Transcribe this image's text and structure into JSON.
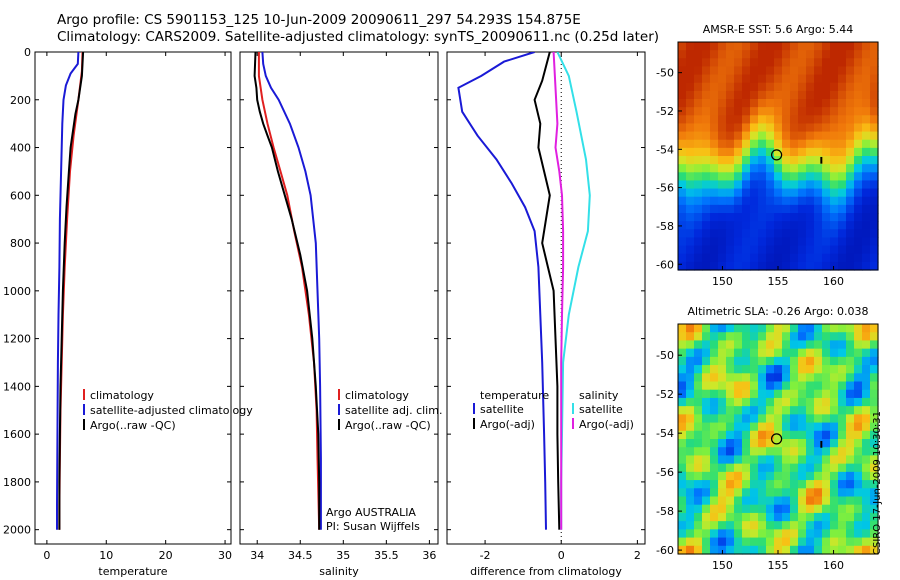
{
  "title": {
    "line1": "Argo profile: CS 5901153_125 10-Jun-2009 20090611_297 54.293S 154.875E",
    "line2": "Climatology: CARS2009. Satellite-adjusted climatology: synTS_20090611.nc (0.25d later)"
  },
  "stamp": "CSIRO 17-Jun-2009 10:30:31",
  "colors": {
    "climatology": "#e02020",
    "satellite": "#1a1ad6",
    "argo": "#000000",
    "sat_salinity": "#33e0e8",
    "argo_adj_salinity": "#e020e0",
    "marker": "#000000"
  },
  "chart_data": [
    {
      "type": "line",
      "name": "temperature",
      "xlabel": "temperature",
      "ylabel": "",
      "xlim": [
        -2,
        31
      ],
      "ylim": [
        2060,
        0
      ],
      "xticks": [
        "0",
        "10",
        "20",
        "30"
      ],
      "xtick_values": [
        0,
        10,
        20,
        30
      ],
      "yticks": [
        "0",
        "200",
        "400",
        "600",
        "800",
        "1000",
        "1200",
        "1400",
        "1600",
        "1800",
        "2000"
      ],
      "ytick_values": [
        0,
        200,
        400,
        600,
        800,
        1000,
        1200,
        1400,
        1600,
        1800,
        2000
      ],
      "legend": [
        "climatology",
        "satellite-adjusted climatology",
        "Argo(..raw -QC)"
      ],
      "series": [
        {
          "name": "climatology",
          "color_key": "climatology",
          "points": [
            [
              6.0,
              0
            ],
            [
              5.9,
              80
            ],
            [
              5.3,
              200
            ],
            [
              4.5,
              350
            ],
            [
              3.9,
              500
            ],
            [
              3.4,
              700
            ],
            [
              3.0,
              900
            ],
            [
              2.7,
              1100
            ],
            [
              2.5,
              1300
            ],
            [
              2.3,
              1500
            ],
            [
              2.2,
              1700
            ],
            [
              2.1,
              1900
            ],
            [
              2.1,
              2000
            ]
          ]
        },
        {
          "name": "satellite-adjusted climatology",
          "color_key": "satellite",
          "points": [
            [
              5.3,
              0
            ],
            [
              5.2,
              50
            ],
            [
              4.0,
              90
            ],
            [
              3.2,
              140
            ],
            [
              2.8,
              200
            ],
            [
              2.6,
              300
            ],
            [
              2.4,
              500
            ],
            [
              2.2,
              700
            ],
            [
              2.1,
              900
            ],
            [
              1.95,
              1100
            ],
            [
              1.85,
              1300
            ],
            [
              1.8,
              1500
            ],
            [
              1.75,
              1700
            ],
            [
              1.7,
              1900
            ],
            [
              1.7,
              2000
            ]
          ]
        },
        {
          "name": "Argo(..raw -QC)",
          "color_key": "argo",
          "points": [
            [
              6.1,
              0
            ],
            [
              5.9,
              100
            ],
            [
              5.3,
              200
            ],
            [
              4.8,
              260
            ],
            [
              4.4,
              330
            ],
            [
              4.0,
              400
            ],
            [
              3.7,
              500
            ],
            [
              3.3,
              650
            ],
            [
              3.0,
              800
            ],
            [
              2.7,
              1000
            ],
            [
              2.5,
              1200
            ],
            [
              2.3,
              1400
            ],
            [
              2.2,
              1600
            ],
            [
              2.1,
              1800
            ],
            [
              2.1,
              2000
            ]
          ]
        }
      ]
    },
    {
      "type": "line",
      "name": "salinity",
      "xlabel": "salinity",
      "ylabel": "",
      "xlim": [
        33.8,
        36.1
      ],
      "ylim": [
        2060,
        0
      ],
      "xticks": [
        "34",
        "34.5",
        "35",
        "35.5",
        "36"
      ],
      "xtick_values": [
        34,
        34.5,
        35,
        35.5,
        36
      ],
      "legend": [
        "climatology",
        "satellite adj. clim.",
        "Argo(..raw -QC)"
      ],
      "annotations": [
        "Argo AUSTRALIA",
        "PI: Susan Wijffels"
      ],
      "series": [
        {
          "name": "climatology",
          "color_key": "climatology",
          "points": [
            [
              34.02,
              0
            ],
            [
              34.02,
              100
            ],
            [
              34.06,
              200
            ],
            [
              34.12,
              300
            ],
            [
              34.19,
              400
            ],
            [
              34.27,
              500
            ],
            [
              34.35,
              600
            ],
            [
              34.43,
              750
            ],
            [
              34.52,
              900
            ],
            [
              34.6,
              1100
            ],
            [
              34.66,
              1300
            ],
            [
              34.69,
              1500
            ],
            [
              34.7,
              1700
            ],
            [
              34.72,
              2000
            ]
          ]
        },
        {
          "name": "satellite adj. clim.",
          "color_key": "satellite",
          "points": [
            [
              34.06,
              0
            ],
            [
              34.07,
              50
            ],
            [
              34.1,
              100
            ],
            [
              34.16,
              150
            ],
            [
              34.25,
              200
            ],
            [
              34.38,
              300
            ],
            [
              34.48,
              400
            ],
            [
              34.56,
              500
            ],
            [
              34.62,
              600
            ],
            [
              34.65,
              700
            ],
            [
              34.68,
              800
            ],
            [
              34.7,
              1000
            ],
            [
              34.72,
              1200
            ],
            [
              34.73,
              1400
            ],
            [
              34.74,
              1700
            ],
            [
              34.74,
              2000
            ]
          ]
        },
        {
          "name": "Argo(..raw -QC)",
          "color_key": "argo",
          "points": [
            [
              33.98,
              0
            ],
            [
              33.97,
              100
            ],
            [
              33.99,
              150
            ],
            [
              34.0,
              200
            ],
            [
              34.03,
              250
            ],
            [
              34.07,
              300
            ],
            [
              34.12,
              350
            ],
            [
              34.17,
              400
            ],
            [
              34.24,
              500
            ],
            [
              34.32,
              600
            ],
            [
              34.4,
              700
            ],
            [
              34.5,
              850
            ],
            [
              34.58,
              1000
            ],
            [
              34.64,
              1200
            ],
            [
              34.68,
              1400
            ],
            [
              34.71,
              1600
            ],
            [
              34.72,
              1800
            ],
            [
              34.72,
              2000
            ]
          ]
        }
      ]
    },
    {
      "type": "line",
      "name": "difference",
      "xlabel": "difference from climatology",
      "ylabel": "",
      "xlim": [
        -3.0,
        2.2
      ],
      "ylim": [
        2060,
        0
      ],
      "xticks": [
        "-2",
        "0",
        "2"
      ],
      "xtick_values": [
        -2,
        0,
        2
      ],
      "legend": [
        "temperature",
        "satellite",
        "Argo(-adj)",
        "salinity",
        "satellite",
        "Argo(-adj)"
      ],
      "series": [
        {
          "name": "temperature satellite",
          "color_key": "satellite",
          "points": [
            [
              -0.7,
              0
            ],
            [
              -1.5,
              40
            ],
            [
              -2.1,
              100
            ],
            [
              -2.7,
              150
            ],
            [
              -2.6,
              250
            ],
            [
              -2.2,
              350
            ],
            [
              -1.7,
              450
            ],
            [
              -1.3,
              550
            ],
            [
              -0.95,
              650
            ],
            [
              -0.7,
              750
            ],
            [
              -0.6,
              900
            ],
            [
              -0.55,
              1100
            ],
            [
              -0.5,
              1300
            ],
            [
              -0.45,
              1600
            ],
            [
              -0.42,
              1800
            ],
            [
              -0.4,
              2000
            ]
          ]
        },
        {
          "name": "temperature Argo(-adj)",
          "color_key": "argo",
          "points": [
            [
              -0.3,
              0
            ],
            [
              -0.5,
              120
            ],
            [
              -0.7,
              200
            ],
            [
              -0.55,
              300
            ],
            [
              -0.6,
              400
            ],
            [
              -0.45,
              500
            ],
            [
              -0.3,
              600
            ],
            [
              -0.4,
              700
            ],
            [
              -0.5,
              800
            ],
            [
              -0.35,
              900
            ],
            [
              -0.2,
              1000
            ],
            [
              -0.15,
              1200
            ],
            [
              -0.1,
              1400
            ],
            [
              -0.1,
              1600
            ],
            [
              -0.08,
              1800
            ],
            [
              -0.05,
              2000
            ]
          ]
        },
        {
          "name": "salinity satellite",
          "color_key": "sat_salinity",
          "points": [
            [
              -0.1,
              0
            ],
            [
              0.2,
              100
            ],
            [
              0.4,
              250
            ],
            [
              0.65,
              450
            ],
            [
              0.75,
              600
            ],
            [
              0.7,
              750
            ],
            [
              0.45,
              900
            ],
            [
              0.2,
              1100
            ],
            [
              0.05,
              1300
            ],
            [
              0.02,
              1600
            ],
            [
              0.0,
              1800
            ],
            [
              0.0,
              2000
            ]
          ]
        },
        {
          "name": "salinity Argo(-adj)",
          "color_key": "argo_adj_salinity",
          "points": [
            [
              -0.2,
              0
            ],
            [
              -0.15,
              150
            ],
            [
              -0.1,
              300
            ],
            [
              -0.15,
              400
            ],
            [
              -0.05,
              500
            ],
            [
              0.02,
              600
            ],
            [
              0.05,
              750
            ],
            [
              0.05,
              900
            ],
            [
              0.02,
              1100
            ],
            [
              0.0,
              1300
            ],
            [
              0.0,
              1600
            ],
            [
              0.0,
              2000
            ]
          ]
        }
      ]
    },
    {
      "type": "heatmap",
      "name": "sst-map",
      "title": "AMSR-E SST: 5.6 Argo: 5.44",
      "xlim": [
        146,
        164
      ],
      "ylim": [
        -60.3,
        -48.4
      ],
      "xticks": [
        "150",
        "155",
        "160"
      ],
      "xtick_values": [
        150,
        155,
        160
      ],
      "yticks": [
        "-50",
        "-52",
        "-54",
        "-56",
        "-58",
        "-60"
      ],
      "ytick_values": [
        -50,
        -52,
        -54,
        -56,
        -58,
        -60
      ],
      "profile_position": [
        154.875,
        -54.293
      ]
    },
    {
      "type": "heatmap",
      "name": "sla-map",
      "title": "Altimetric SLA: -0.26 Argo: 0.038",
      "xlim": [
        146,
        164
      ],
      "ylim": [
        -60.2,
        -48.4
      ],
      "xticks": [
        "150",
        "155",
        "160"
      ],
      "xtick_values": [
        150,
        155,
        160
      ],
      "yticks": [
        "-50",
        "-52",
        "-54",
        "-56",
        "-58",
        "-60"
      ],
      "ytick_values": [
        -50,
        -52,
        -54,
        -56,
        -58,
        -60
      ],
      "profile_position": [
        154.875,
        -54.293
      ]
    }
  ]
}
